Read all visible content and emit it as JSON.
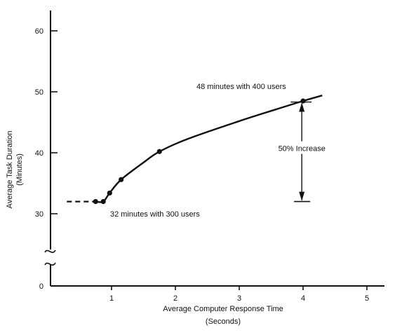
{
  "chart_data": {
    "type": "line",
    "title": "",
    "xlabel": "Average Computer Response Time",
    "xlabel_units": "(Seconds)",
    "ylabel": "Average Task Duration",
    "ylabel_units": "(Minutes)",
    "xlim": [
      0,
      5.5
    ],
    "ylim": [
      0,
      60
    ],
    "y_axis_break": true,
    "x_ticks": [
      1,
      2,
      3,
      4,
      5
    ],
    "y_ticks": [
      0,
      30,
      40,
      50,
      60
    ],
    "x_tick_labels": [
      "1",
      "2",
      "3",
      "4",
      "5"
    ],
    "y_tick_labels": [
      "0",
      "30",
      "40",
      "50",
      "60"
    ],
    "grid": false,
    "legend": "none",
    "series": [
      {
        "points": [
          {
            "x": 0.3,
            "y": 32.0
          },
          {
            "x": 0.75,
            "y": 32.0
          },
          {
            "x": 0.87,
            "y": 32.0
          },
          {
            "x": 0.97,
            "y": 33.4
          },
          {
            "x": 1.15,
            "y": 35.6
          },
          {
            "x": 1.5,
            "y": 38.4
          },
          {
            "x": 1.75,
            "y": 40.2
          },
          {
            "x": 2.2,
            "y": 42.3
          },
          {
            "x": 3.0,
            "y": 45.2
          },
          {
            "x": 3.6,
            "y": 47.2
          },
          {
            "x": 4.0,
            "y": 48.5
          },
          {
            "x": 4.3,
            "y": 49.4
          }
        ],
        "dashed_until_x": 0.75,
        "markers": [
          {
            "x": 0.75,
            "y": 32.0
          },
          {
            "x": 0.87,
            "y": 32.0
          },
          {
            "x": 0.97,
            "y": 33.4
          },
          {
            "x": 1.15,
            "y": 35.6
          },
          {
            "x": 1.75,
            "y": 40.2
          },
          {
            "x": 4.0,
            "y": 48.5
          }
        ]
      }
    ],
    "annotations": {
      "low_point": {
        "text": "32 minutes with 300 users"
      },
      "high_point": {
        "text": "48 minutes with 400 users"
      },
      "increase": {
        "text": "50% Increase",
        "x": 4.2,
        "from": 32,
        "to": 48.5
      }
    }
  }
}
